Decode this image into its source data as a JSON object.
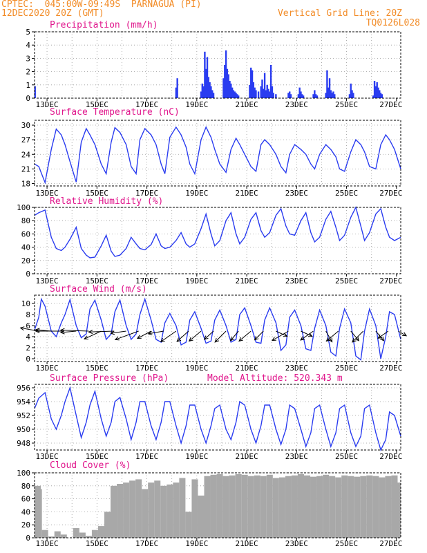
{
  "header": {
    "source": "CPTEC:",
    "coordinates": "045:00W-09:49S",
    "location": "PARNAGUA (PI)",
    "date": "12DEC2020 20Z (GMT)",
    "grid_note": "Vertical Grid Line: 20Z",
    "model_code": "TQ0126L028"
  },
  "model_altitude": "Model Altitude: 520.343 m",
  "colors": {
    "header": "#f28c28",
    "title": "#e0168c",
    "line": "#2a3cf0",
    "bar": "#2a3cf0",
    "cloud": "#a8a8a8"
  },
  "x_ticks": [
    "13DEC",
    "15DEC",
    "17DEC",
    "19DEC",
    "21DEC",
    "23DEC",
    "25DEC",
    "27DEC"
  ],
  "chart_data": [
    {
      "id": "precipitation",
      "type": "bar",
      "title": "Precipitation (mm/h)",
      "x_range_days": [
        12.33,
        27.0
      ],
      "ylim": [
        0,
        5
      ],
      "yticks": [
        0,
        1,
        2,
        3,
        4,
        5
      ],
      "x_day": [
        12.35,
        18.0,
        18.05,
        19.0,
        19.05,
        19.1,
        19.15,
        19.2,
        19.25,
        19.3,
        19.35,
        19.4,
        19.45,
        19.5,
        19.9,
        19.95,
        20.0,
        20.05,
        20.1,
        20.15,
        20.2,
        20.25,
        20.3,
        20.35,
        20.4,
        20.45,
        20.5,
        20.95,
        21.0,
        21.05,
        21.1,
        21.15,
        21.2,
        21.3,
        21.4,
        21.45,
        21.5,
        21.55,
        21.6,
        21.65,
        21.7,
        21.75,
        21.8,
        21.85,
        21.9,
        22.0,
        22.5,
        22.55,
        22.6,
        22.9,
        22.95,
        23.0,
        23.05,
        23.1,
        23.5,
        23.55,
        23.6,
        23.65,
        24.0,
        24.05,
        24.1,
        24.15,
        24.2,
        24.25,
        24.3,
        24.35,
        24.95,
        25.0,
        25.05,
        25.1,
        25.9,
        25.95,
        26.0,
        26.05,
        26.1,
        26.15,
        26.2,
        26.25
      ],
      "values": [
        0.9,
        0.8,
        1.5,
        0.5,
        1.1,
        0.9,
        3.5,
        2.2,
        3.1,
        1.6,
        1.2,
        0.9,
        0.6,
        0.4,
        1.5,
        2.5,
        3.6,
        2.2,
        1.8,
        1.3,
        1.1,
        0.8,
        0.6,
        0.5,
        0.4,
        0.3,
        0.2,
        1.0,
        2.3,
        2.1,
        1.2,
        0.8,
        0.6,
        0.5,
        0.9,
        1.4,
        0.7,
        1.9,
        0.6,
        1.0,
        0.7,
        0.5,
        2.5,
        0.9,
        0.4,
        0.3,
        0.4,
        0.5,
        0.3,
        0.3,
        0.8,
        0.5,
        0.3,
        0.2,
        0.3,
        0.6,
        0.3,
        0.2,
        0.4,
        2.1,
        0.8,
        1.5,
        0.6,
        0.4,
        0.5,
        0.3,
        0.3,
        1.1,
        0.6,
        0.4,
        0.2,
        1.3,
        0.9,
        1.2,
        0.8,
        0.6,
        0.4,
        0.3
      ]
    },
    {
      "id": "temperature",
      "type": "line",
      "title": "Surface Temperature (nC)",
      "ylim": [
        17.5,
        31
      ],
      "yticks": [
        18,
        21,
        24,
        27,
        30
      ],
      "x_day": [
        12.33,
        12.5,
        12.75,
        13.0,
        13.2,
        13.4,
        13.55,
        13.75,
        14.0,
        14.2,
        14.4,
        14.55,
        14.75,
        15.0,
        15.2,
        15.4,
        15.55,
        15.75,
        16.0,
        16.2,
        16.4,
        16.55,
        16.75,
        17.0,
        17.2,
        17.4,
        17.55,
        17.75,
        18.0,
        18.2,
        18.4,
        18.55,
        18.75,
        19.0,
        19.2,
        19.4,
        19.55,
        19.75,
        20.0,
        20.2,
        20.4,
        20.55,
        20.75,
        21.0,
        21.2,
        21.4,
        21.55,
        21.75,
        22.0,
        22.2,
        22.4,
        22.55,
        22.75,
        23.0,
        23.2,
        23.4,
        23.55,
        23.75,
        24.0,
        24.2,
        24.4,
        24.55,
        24.75,
        25.0,
        25.2,
        25.4,
        25.55,
        25.75,
        26.0,
        26.2,
        26.4,
        26.55,
        26.75,
        27.0
      ],
      "values": [
        22.0,
        21.5,
        18.2,
        25.0,
        29.2,
        28.0,
        26.0,
        22.5,
        18.3,
        26.5,
        29.3,
        28.0,
        26.0,
        22.0,
        20.0,
        26.5,
        29.5,
        28.5,
        26.0,
        21.5,
        20.0,
        27.0,
        29.3,
        28.0,
        26.0,
        22.0,
        20.0,
        27.5,
        29.6,
        28.0,
        25.5,
        22.0,
        20.0,
        27.0,
        29.6,
        27.5,
        25.0,
        22.0,
        20.3,
        25.0,
        27.3,
        26.0,
        24.0,
        21.5,
        20.5,
        26.0,
        27.0,
        26.0,
        24.0,
        21.5,
        20.2,
        24.0,
        26.0,
        25.0,
        24.0,
        22.0,
        21.0,
        24.0,
        26.0,
        25.0,
        23.5,
        21.0,
        20.5,
        24.5,
        27.0,
        26.0,
        24.5,
        21.5,
        21.0,
        26.0,
        28.0,
        27.0,
        25.0,
        21.0
      ]
    },
    {
      "id": "humidity",
      "type": "line",
      "title": "Relative Humidity (%)",
      "ylim": [
        0,
        100
      ],
      "yticks": [
        0,
        20,
        40,
        60,
        80,
        100
      ],
      "x_day": [
        12.33,
        12.5,
        12.75,
        13.0,
        13.2,
        13.4,
        13.55,
        13.75,
        14.0,
        14.2,
        14.4,
        14.55,
        14.75,
        15.0,
        15.2,
        15.4,
        15.55,
        15.75,
        16.0,
        16.2,
        16.4,
        16.55,
        16.75,
        17.0,
        17.2,
        17.4,
        17.55,
        17.75,
        18.0,
        18.2,
        18.4,
        18.55,
        18.75,
        19.0,
        19.2,
        19.4,
        19.55,
        19.75,
        20.0,
        20.2,
        20.4,
        20.55,
        20.75,
        21.0,
        21.2,
        21.4,
        21.55,
        21.75,
        22.0,
        22.2,
        22.4,
        22.55,
        22.75,
        23.0,
        23.2,
        23.4,
        23.55,
        23.75,
        24.0,
        24.2,
        24.4,
        24.55,
        24.75,
        25.0,
        25.2,
        25.4,
        25.55,
        25.75,
        26.0,
        26.2,
        26.4,
        26.55,
        26.75,
        27.0
      ],
      "values": [
        88,
        92,
        96,
        55,
        38,
        35,
        40,
        52,
        70,
        38,
        28,
        24,
        25,
        42,
        58,
        34,
        26,
        28,
        38,
        55,
        45,
        38,
        36,
        44,
        60,
        42,
        38,
        40,
        50,
        62,
        45,
        40,
        45,
        68,
        90,
        60,
        42,
        50,
        80,
        92,
        60,
        45,
        55,
        82,
        92,
        65,
        55,
        62,
        88,
        98,
        72,
        60,
        58,
        80,
        92,
        62,
        48,
        55,
        82,
        94,
        70,
        50,
        58,
        85,
        100,
        72,
        50,
        62,
        90,
        98,
        70,
        55,
        50,
        55
      ]
    },
    {
      "id": "wind",
      "type": "line",
      "title": "Surface Wind (m/s)",
      "ylim": [
        -0.5,
        11.5
      ],
      "yticks": [
        0,
        2,
        4,
        6,
        8,
        10
      ],
      "x_day": [
        12.33,
        12.5,
        12.6,
        12.75,
        13.0,
        13.2,
        13.4,
        13.55,
        13.75,
        14.0,
        14.2,
        14.4,
        14.55,
        14.75,
        15.0,
        15.2,
        15.4,
        15.55,
        15.75,
        16.0,
        16.2,
        16.4,
        16.55,
        16.75,
        17.0,
        17.2,
        17.4,
        17.55,
        17.75,
        18.0,
        18.2,
        18.4,
        18.55,
        18.75,
        19.0,
        19.2,
        19.4,
        19.55,
        19.75,
        20.0,
        20.2,
        20.4,
        20.55,
        20.75,
        21.0,
        21.2,
        21.4,
        21.55,
        21.75,
        22.0,
        22.2,
        22.4,
        22.55,
        22.75,
        23.0,
        23.2,
        23.4,
        23.55,
        23.75,
        24.0,
        24.2,
        24.4,
        24.55,
        24.75,
        25.0,
        25.2,
        25.4,
        25.55,
        25.75,
        26.0,
        26.2,
        26.4,
        26.55,
        26.75,
        27.0
      ],
      "values": [
        5.2,
        7.5,
        10.8,
        9.5,
        5.0,
        4.0,
        6.5,
        8.0,
        10.7,
        6.0,
        3.8,
        4.5,
        9.0,
        10.6,
        7.0,
        3.5,
        4.5,
        8.5,
        10.6,
        6.0,
        3.5,
        4.5,
        8.0,
        10.8,
        7.0,
        3.5,
        3.0,
        6.5,
        8.2,
        6.0,
        2.5,
        3.0,
        7.0,
        8.5,
        5.5,
        2.8,
        3.2,
        7.0,
        8.8,
        6.0,
        3.0,
        3.5,
        8.0,
        9.2,
        6.0,
        3.0,
        2.8,
        7.0,
        9.2,
        6.5,
        1.5,
        2.5,
        7.5,
        8.8,
        6.0,
        1.8,
        1.5,
        5.5,
        8.8,
        6.0,
        1.2,
        0.5,
        5.5,
        9.0,
        6.5,
        0.5,
        -0.2,
        5.0,
        9.0,
        6.0,
        0.0,
        4.0,
        8.5,
        8.0,
        3.5
      ],
      "vectors": [
        {
          "x_day": 12.5,
          "speed": 6,
          "dir_deg": 280
        },
        {
          "x_day": 13.0,
          "speed": 5,
          "dir_deg": 275
        },
        {
          "x_day": 13.5,
          "speed": 9,
          "dir_deg": 270
        },
        {
          "x_day": 14.0,
          "speed": 5,
          "dir_deg": 265
        },
        {
          "x_day": 14.5,
          "speed": 9,
          "dir_deg": 272
        },
        {
          "x_day": 15.0,
          "speed": 6,
          "dir_deg": 245
        },
        {
          "x_day": 15.5,
          "speed": 8,
          "dir_deg": 268
        },
        {
          "x_day": 16.0,
          "speed": 5,
          "dir_deg": 262
        },
        {
          "x_day": 16.5,
          "speed": 8,
          "dir_deg": 250
        },
        {
          "x_day": 17.0,
          "speed": 5,
          "dir_deg": 242
        },
        {
          "x_day": 17.5,
          "speed": 5,
          "dir_deg": 260
        },
        {
          "x_day": 18.0,
          "speed": 6,
          "dir_deg": 235
        },
        {
          "x_day": 18.5,
          "speed": 5,
          "dir_deg": 228
        },
        {
          "x_day": 19.0,
          "speed": 5,
          "dir_deg": 230
        },
        {
          "x_day": 19.5,
          "speed": 4,
          "dir_deg": 228
        },
        {
          "x_day": 20.0,
          "speed": 5,
          "dir_deg": 225
        },
        {
          "x_day": 20.5,
          "speed": 4,
          "dir_deg": 220
        },
        {
          "x_day": 21.0,
          "speed": 5,
          "dir_deg": 230
        },
        {
          "x_day": 21.5,
          "speed": 4,
          "dir_deg": 225
        },
        {
          "x_day": 22.0,
          "speed": 4,
          "dir_deg": 115
        },
        {
          "x_day": 22.5,
          "speed": 6,
          "dir_deg": 240
        },
        {
          "x_day": 23.0,
          "speed": 4,
          "dir_deg": 115
        },
        {
          "x_day": 23.5,
          "speed": 5,
          "dir_deg": 235
        },
        {
          "x_day": 24.0,
          "speed": 4,
          "dir_deg": 150
        },
        {
          "x_day": 24.5,
          "speed": 5,
          "dir_deg": 230
        },
        {
          "x_day": 25.0,
          "speed": 4,
          "dir_deg": 140
        },
        {
          "x_day": 25.5,
          "speed": 5,
          "dir_deg": 225
        },
        {
          "x_day": 26.0,
          "speed": 4,
          "dir_deg": 140
        },
        {
          "x_day": 26.5,
          "speed": 4,
          "dir_deg": 235
        },
        {
          "x_day": 26.9,
          "speed": 3,
          "dir_deg": 120
        }
      ]
    },
    {
      "id": "pressure",
      "type": "line",
      "title": "Surface Pressure (hPa)",
      "ylim": [
        947,
        956.5
      ],
      "yticks": [
        948,
        950,
        952,
        954,
        956
      ],
      "x_day": [
        12.33,
        12.5,
        12.75,
        13.0,
        13.2,
        13.4,
        13.55,
        13.75,
        14.0,
        14.2,
        14.4,
        14.55,
        14.75,
        15.0,
        15.2,
        15.4,
        15.55,
        15.75,
        16.0,
        16.2,
        16.4,
        16.55,
        16.75,
        17.0,
        17.2,
        17.4,
        17.55,
        17.75,
        18.0,
        18.2,
        18.4,
        18.55,
        18.75,
        19.0,
        19.2,
        19.4,
        19.55,
        19.75,
        20.0,
        20.2,
        20.4,
        20.55,
        20.75,
        21.0,
        21.2,
        21.4,
        21.55,
        21.75,
        22.0,
        22.2,
        22.4,
        22.55,
        22.75,
        23.0,
        23.2,
        23.4,
        23.55,
        23.75,
        24.0,
        24.2,
        24.4,
        24.55,
        24.75,
        25.0,
        25.2,
        25.4,
        25.55,
        25.75,
        26.0,
        26.2,
        26.4,
        26.55,
        26.75,
        27.0
      ],
      "values": [
        953.0,
        954.5,
        955.3,
        951.5,
        950.0,
        952.0,
        954.0,
        956.0,
        952.0,
        948.8,
        951.0,
        953.5,
        955.5,
        951.5,
        949.0,
        951.0,
        954.0,
        954.6,
        951.5,
        948.5,
        951.0,
        954.0,
        954.0,
        950.5,
        948.5,
        951.0,
        954.0,
        954.0,
        950.5,
        948.0,
        950.5,
        953.5,
        953.5,
        950.0,
        948.0,
        950.5,
        953.0,
        953.5,
        950.0,
        948.5,
        951.0,
        954.0,
        953.5,
        950.0,
        948.0,
        950.5,
        953.5,
        953.5,
        950.0,
        947.8,
        950.0,
        953.5,
        953.0,
        950.0,
        947.5,
        949.5,
        953.0,
        953.5,
        950.0,
        947.5,
        949.5,
        953.0,
        953.5,
        949.5,
        947.5,
        949.0,
        953.0,
        953.5,
        949.5,
        947.0,
        948.5,
        952.5,
        952.0,
        949.0
      ]
    },
    {
      "id": "cloud",
      "type": "bar",
      "title": "Cloud Cover (%)",
      "ylim": [
        0,
        100
      ],
      "yticks": [
        0,
        20,
        40,
        60,
        80,
        100
      ],
      "x_day": [
        12.33,
        12.5,
        12.75,
        13.0,
        13.25,
        13.5,
        13.75,
        14.0,
        14.25,
        14.5,
        14.75,
        15.0,
        15.25,
        15.5,
        15.75,
        16.0,
        16.25,
        16.5,
        16.75,
        17.0,
        17.25,
        17.5,
        17.75,
        18.0,
        18.25,
        18.5,
        18.75,
        19.0,
        19.25,
        19.5,
        19.75,
        20.0,
        20.25,
        20.5,
        20.75,
        21.0,
        21.25,
        21.5,
        21.75,
        22.0,
        22.25,
        22.5,
        22.75,
        23.0,
        23.25,
        23.5,
        23.75,
        24.0,
        24.25,
        24.5,
        24.75,
        25.0,
        25.25,
        25.5,
        25.75,
        26.0,
        26.25,
        26.5,
        26.75,
        27.0
      ],
      "values": [
        80,
        75,
        12,
        2,
        10,
        5,
        0,
        15,
        8,
        3,
        12,
        18,
        40,
        80,
        83,
        85,
        88,
        90,
        75,
        85,
        88,
        80,
        82,
        85,
        92,
        40,
        90,
        65,
        95,
        97,
        98,
        95,
        96,
        98,
        97,
        95,
        96,
        95,
        97,
        92,
        93,
        95,
        96,
        98,
        96,
        94,
        95,
        97,
        95,
        93,
        96,
        95,
        94,
        95,
        96,
        95,
        93,
        95,
        96,
        85
      ]
    }
  ]
}
